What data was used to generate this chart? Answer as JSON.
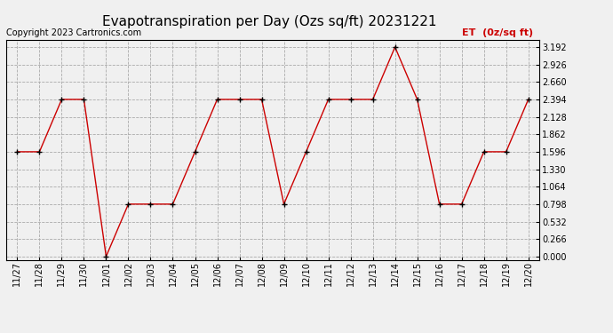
{
  "title": "Evapotranspiration per Day (Ozs sq/ft) 20231221",
  "copyright": "Copyright 2023 Cartronics.com",
  "legend_label": "ET  (0z/sq ft)",
  "dates": [
    "11/27",
    "11/28",
    "11/29",
    "11/30",
    "12/01",
    "12/02",
    "12/03",
    "12/04",
    "12/05",
    "12/06",
    "12/07",
    "12/08",
    "12/09",
    "12/10",
    "12/11",
    "12/12",
    "12/13",
    "12/14",
    "12/15",
    "12/16",
    "12/17",
    "12/18",
    "12/19",
    "12/20"
  ],
  "values": [
    1.596,
    1.596,
    2.394,
    2.394,
    0.0,
    0.798,
    0.798,
    0.798,
    1.596,
    2.394,
    2.394,
    2.394,
    0.798,
    1.596,
    2.394,
    2.394,
    2.394,
    3.192,
    2.394,
    0.798,
    0.798,
    1.596,
    1.596,
    2.394
  ],
  "line_color": "#cc0000",
  "marker_color": "#000000",
  "background_color": "#f0f0f0",
  "grid_color": "#aaaaaa",
  "yticks": [
    0.0,
    0.266,
    0.532,
    0.798,
    1.064,
    1.33,
    1.596,
    1.862,
    2.128,
    2.394,
    2.66,
    2.926,
    3.192
  ],
  "ylim": [
    -0.05,
    3.3
  ],
  "title_fontsize": 11,
  "copyright_fontsize": 7,
  "legend_fontsize": 8,
  "tick_fontsize": 7
}
